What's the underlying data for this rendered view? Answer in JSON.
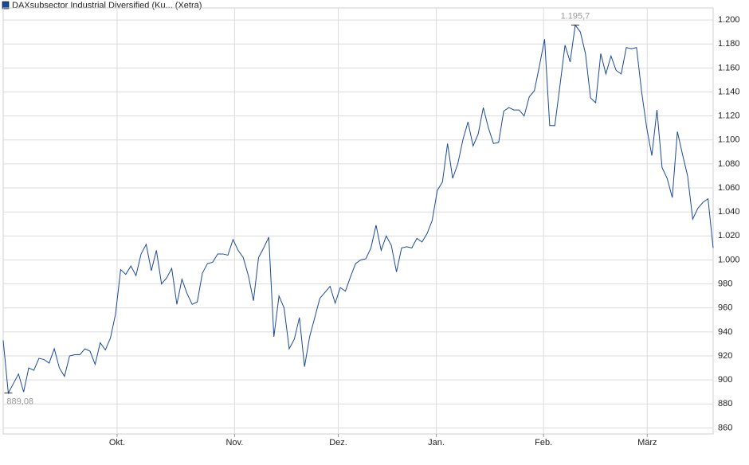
{
  "chart_data": {
    "type": "line",
    "series": [
      {
        "name": "DAXsubsector Industrial Diversified (Ku... (Xetra)",
        "color": "#1a4a9c",
        "values": [
          933,
          889.08,
          897,
          905,
          890,
          910,
          908,
          918,
          917,
          914,
          926,
          910,
          903,
          920,
          921,
          921,
          926,
          924,
          913,
          931,
          925,
          935,
          955,
          992,
          988,
          995,
          987,
          1005,
          1013,
          991,
          1008,
          980,
          985,
          993,
          963,
          984,
          972,
          963,
          965,
          989,
          997,
          998,
          1005,
          1005,
          1004,
          1017,
          1008,
          1002,
          987,
          966,
          1002,
          1010,
          1019,
          936,
          970,
          960,
          926,
          934,
          952,
          911,
          936,
          952,
          968,
          973,
          978,
          964,
          977,
          974,
          986,
          997,
          1000,
          1001,
          1010,
          1029,
          1008,
          1020,
          1012,
          990,
          1010,
          1011,
          1010,
          1018,
          1015,
          1022,
          1033,
          1058,
          1065,
          1097,
          1068,
          1080,
          1100,
          1115,
          1095,
          1105,
          1127,
          1110,
          1097,
          1098,
          1124,
          1127,
          1125,
          1125,
          1120,
          1136,
          1141,
          1162,
          1184,
          1112,
          1112,
          1145,
          1179,
          1165,
          1195.7,
          1190,
          1172,
          1135,
          1131,
          1172,
          1155,
          1170,
          1158,
          1155,
          1177,
          1176,
          1177,
          1140,
          1110,
          1087,
          1125,
          1077,
          1068,
          1052,
          1107,
          1088,
          1070,
          1034,
          1043,
          1048,
          1051,
          1010
        ],
        "value_labels": [
          null,
          "889,08",
          null,
          null,
          null,
          null,
          null,
          null,
          null,
          null,
          null,
          null,
          null,
          null,
          null,
          null,
          null,
          null,
          null,
          null,
          null,
          null,
          null,
          null,
          null,
          null,
          null,
          null,
          null,
          null,
          null,
          null,
          null,
          null,
          null,
          null,
          null,
          null,
          null,
          null,
          null,
          null,
          null,
          null,
          null,
          null,
          null,
          null,
          null,
          null,
          null,
          null,
          null,
          null,
          null,
          null,
          null,
          null,
          null,
          null,
          null,
          null,
          null,
          null,
          null,
          null,
          null,
          null,
          null,
          null,
          null,
          null,
          null,
          null,
          null,
          null,
          null,
          null,
          null,
          null,
          null,
          null,
          null,
          null,
          null,
          null,
          null,
          null,
          null,
          null,
          null,
          null,
          null,
          null,
          null,
          null,
          null,
          null,
          null,
          null,
          null,
          null,
          null,
          null,
          null,
          null,
          null,
          null,
          null,
          null,
          null,
          null,
          "1.195,7",
          null,
          null,
          null,
          null,
          null,
          null,
          null,
          null,
          null,
          null,
          null,
          null,
          null,
          null,
          null,
          null,
          null,
          null,
          null,
          null,
          null,
          null,
          null,
          null,
          null,
          null,
          null
        ]
      }
    ],
    "xlim": [
      0,
      139
    ],
    "xticks": [
      {
        "value": 22.3,
        "label": "Okt."
      },
      {
        "value": 45.3,
        "label": "Nov."
      },
      {
        "value": 65.6,
        "label": "Dez."
      },
      {
        "value": 84.8,
        "label": "Jan."
      },
      {
        "value": 105.8,
        "label": "Feb."
      },
      {
        "value": 126.1,
        "label": "März"
      }
    ],
    "ylim": [
      855,
      1210
    ],
    "yticks": [
      860,
      880,
      900,
      920,
      940,
      960,
      980,
      {
        "value": 1000,
        "label": "1.000"
      },
      {
        "value": 1020,
        "label": "1.020"
      },
      {
        "value": 1040,
        "label": "1.040"
      },
      {
        "value": 1060,
        "label": "1.060"
      },
      {
        "value": 1080,
        "label": "1.080"
      },
      {
        "value": 1100,
        "label": "1.100"
      },
      {
        "value": 1120,
        "label": "1.120"
      },
      {
        "value": 1140,
        "label": "1.140"
      },
      {
        "value": 1160,
        "label": "1.160"
      },
      {
        "value": 1180,
        "label": "1.180"
      },
      {
        "value": 1200,
        "label": "1.200"
      }
    ],
    "grid": true
  }
}
